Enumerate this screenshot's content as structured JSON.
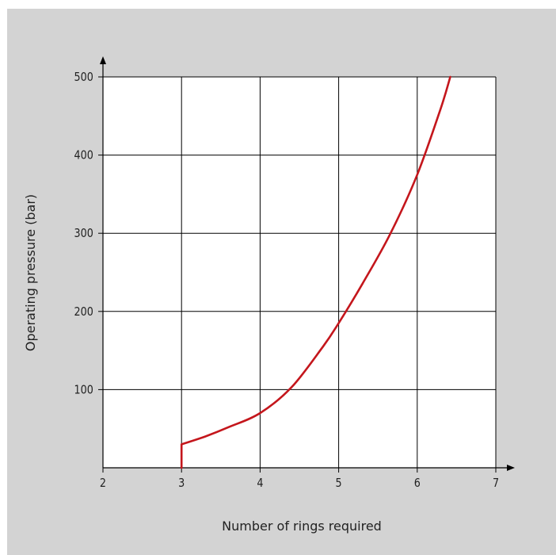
{
  "chart_data": {
    "type": "line",
    "title": "",
    "xlabel": "Number of rings required",
    "ylabel": "Operating pressure (bar)",
    "xlim": [
      2,
      7
    ],
    "ylim": [
      0,
      500
    ],
    "x_ticks": [
      2,
      3,
      4,
      5,
      6,
      7
    ],
    "y_ticks": [
      100,
      200,
      300,
      400,
      500
    ],
    "grid": true,
    "colors": {
      "background": "#d3d3d3",
      "plot_area": "#ffffff",
      "grid": "#000000",
      "series": "#c4161c"
    },
    "series": [
      {
        "name": "",
        "x": [
          3.0,
          3.0,
          3.3,
          3.6,
          4.0,
          4.4,
          4.8,
          5.0,
          5.3,
          5.65,
          6.0,
          6.3,
          6.42
        ],
        "y": [
          0,
          30,
          40,
          52,
          70,
          103,
          155,
          185,
          235,
          298,
          375,
          460,
          500
        ]
      }
    ]
  }
}
